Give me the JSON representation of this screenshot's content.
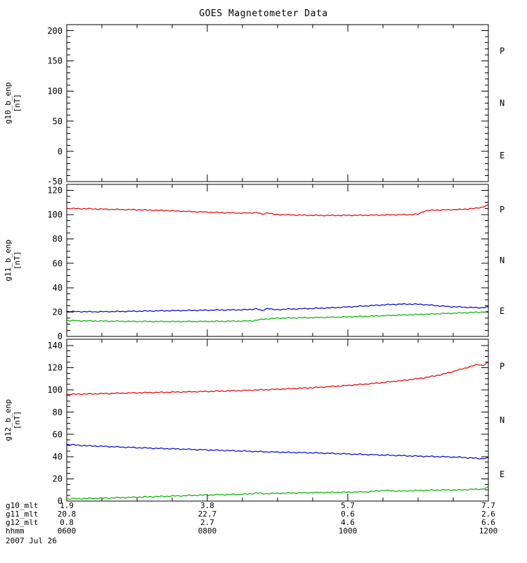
{
  "title": "GOES Magnetometer Data",
  "date_label": "2007 Jul 26",
  "colors": {
    "P": "#e00000",
    "N": "#00b000",
    "E": "#0000cc",
    "axis": "#000000",
    "background": "#ffffff"
  },
  "x_axis": {
    "range_hours": [
      6,
      12
    ],
    "major_ticks_hours": [
      6,
      8,
      10,
      12
    ],
    "minor_step_hours": 0.5
  },
  "bottom_rows": [
    {
      "label": "g10_mlt",
      "values": [
        "1.9",
        "3.8",
        "5.7",
        "7.7"
      ]
    },
    {
      "label": "g11_mlt",
      "values": [
        "20.8",
        "22.7",
        "0.6",
        "2.6"
      ]
    },
    {
      "label": "g12_mlt",
      "values": [
        "0.8",
        "2.7",
        "4.6",
        "6.6"
      ]
    },
    {
      "label": "hhmm",
      "values": [
        "0600",
        "0800",
        "1000",
        "1200"
      ]
    }
  ],
  "chart_data": [
    {
      "type": "line",
      "ylabel": "g10_b_enp",
      "ylabel_units": "[nT]",
      "ylim": [
        -50,
        200
      ],
      "yticks": [
        -50,
        0,
        50,
        100,
        150,
        200
      ],
      "y_minor_step": 10,
      "right_labels": [
        "P",
        "N",
        "E"
      ],
      "series": []
    },
    {
      "type": "line",
      "ylabel": "g11_b_enp",
      "ylabel_units": "[nT]",
      "ylim": [
        0,
        120
      ],
      "yticks": [
        0,
        20,
        40,
        60,
        80,
        100,
        120
      ],
      "y_minor_step": 5,
      "right_labels": [
        "P",
        "N",
        "E"
      ],
      "series": [
        {
          "name": "P",
          "points": [
            [
              6,
              105
            ],
            [
              6.3,
              104.8
            ],
            [
              6.7,
              104.2
            ],
            [
              7,
              104
            ],
            [
              7.4,
              103.3
            ],
            [
              7.8,
              102.4
            ],
            [
              8.1,
              101.8
            ],
            [
              8.4,
              101.3
            ],
            [
              8.6,
              101.2
            ],
            [
              8.7,
              101.8
            ],
            [
              8.78,
              100.2
            ],
            [
              8.86,
              101.6
            ],
            [
              8.95,
              100.1
            ],
            [
              9.05,
              100
            ],
            [
              9.3,
              99.6
            ],
            [
              9.6,
              99.3
            ],
            [
              10,
              99.4
            ],
            [
              10.3,
              99.5
            ],
            [
              10.6,
              99.8
            ],
            [
              10.9,
              100
            ],
            [
              11.0,
              100.3
            ],
            [
              11.08,
              102.8
            ],
            [
              11.2,
              103.6
            ],
            [
              11.4,
              103.9
            ],
            [
              11.6,
              104.2
            ],
            [
              11.8,
              105
            ],
            [
              11.9,
              106
            ],
            [
              12,
              107.6
            ]
          ]
        },
        {
          "name": "N",
          "points": [
            [
              6,
              13
            ],
            [
              6.5,
              12.6
            ],
            [
              7,
              12.3
            ],
            [
              7.5,
              12.2
            ],
            [
              8,
              12.3
            ],
            [
              8.5,
              12.6
            ],
            [
              8.65,
              12.8
            ],
            [
              8.8,
              14.2
            ],
            [
              9,
              15
            ],
            [
              9.5,
              15.4
            ],
            [
              10,
              16
            ],
            [
              10.5,
              17
            ],
            [
              11,
              18
            ],
            [
              11.5,
              19
            ],
            [
              12,
              20.2
            ]
          ]
        },
        {
          "name": "E",
          "points": [
            [
              6,
              20.5
            ],
            [
              6.4,
              20.2
            ],
            [
              6.8,
              20.5
            ],
            [
              7.2,
              20.9
            ],
            [
              7.6,
              21.2
            ],
            [
              8,
              21.5
            ],
            [
              8.4,
              21.8
            ],
            [
              8.6,
              22
            ],
            [
              8.7,
              22.8
            ],
            [
              8.78,
              21
            ],
            [
              8.86,
              23.2
            ],
            [
              8.95,
              21.8
            ],
            [
              9.1,
              22.3
            ],
            [
              9.4,
              22.8
            ],
            [
              9.7,
              23.3
            ],
            [
              10,
              24.2
            ],
            [
              10.3,
              25.2
            ],
            [
              10.6,
              26.2
            ],
            [
              10.85,
              26.6
            ],
            [
              11.05,
              26.3
            ],
            [
              11.25,
              25.3
            ],
            [
              11.45,
              24.4
            ],
            [
              11.65,
              24
            ],
            [
              11.85,
              23.5
            ],
            [
              12,
              23.9
            ]
          ]
        }
      ]
    },
    {
      "type": "line",
      "ylabel": "g12_b_enp",
      "ylabel_units": "[nT]",
      "ylim": [
        0,
        140
      ],
      "yticks": [
        0,
        20,
        40,
        60,
        80,
        100,
        120,
        140
      ],
      "y_minor_step": 5,
      "right_labels": [
        "P",
        "N",
        "E"
      ],
      "series": [
        {
          "name": "P",
          "points": [
            [
              6,
              96
            ],
            [
              6.5,
              96.6
            ],
            [
              7,
              97.4
            ],
            [
              7.5,
              98
            ],
            [
              8,
              98.6
            ],
            [
              8.5,
              99.4
            ],
            [
              9,
              100.6
            ],
            [
              9.5,
              102
            ],
            [
              10,
              104
            ],
            [
              10.4,
              106
            ],
            [
              10.8,
              108.6
            ],
            [
              11.1,
              111
            ],
            [
              11.35,
              114
            ],
            [
              11.55,
              117.5
            ],
            [
              11.75,
              121
            ],
            [
              11.85,
              123
            ],
            [
              11.92,
              122
            ],
            [
              12,
              124.5
            ]
          ]
        },
        {
          "name": "N",
          "points": [
            [
              6,
              2
            ],
            [
              6.5,
              2.6
            ],
            [
              7,
              3.5
            ],
            [
              7.5,
              4.5
            ],
            [
              8,
              5.5
            ],
            [
              8.4,
              6
            ],
            [
              8.6,
              6.4
            ],
            [
              8.7,
              7.4
            ],
            [
              8.8,
              6.6
            ],
            [
              9,
              7
            ],
            [
              9.5,
              7.6
            ],
            [
              10,
              8
            ],
            [
              10.3,
              8.4
            ],
            [
              10.5,
              9.6
            ],
            [
              10.7,
              9
            ],
            [
              11,
              9.5
            ],
            [
              11.3,
              10
            ],
            [
              11.6,
              10
            ],
            [
              11.8,
              10.6
            ],
            [
              11.92,
              10.8
            ],
            [
              12,
              12.2
            ]
          ]
        },
        {
          "name": "E",
          "points": [
            [
              6,
              51
            ],
            [
              6.2,
              50
            ],
            [
              6.6,
              49
            ],
            [
              7,
              48
            ],
            [
              7.5,
              47
            ],
            [
              8,
              46
            ],
            [
              8.5,
              45
            ],
            [
              9,
              44
            ],
            [
              9.5,
              43.4
            ],
            [
              10,
              42.4
            ],
            [
              10.5,
              41.4
            ],
            [
              11,
              40.4
            ],
            [
              11.3,
              40
            ],
            [
              11.6,
              39.4
            ],
            [
              11.8,
              38.6
            ],
            [
              11.9,
              38.2
            ],
            [
              12,
              38.6
            ]
          ]
        }
      ]
    }
  ]
}
